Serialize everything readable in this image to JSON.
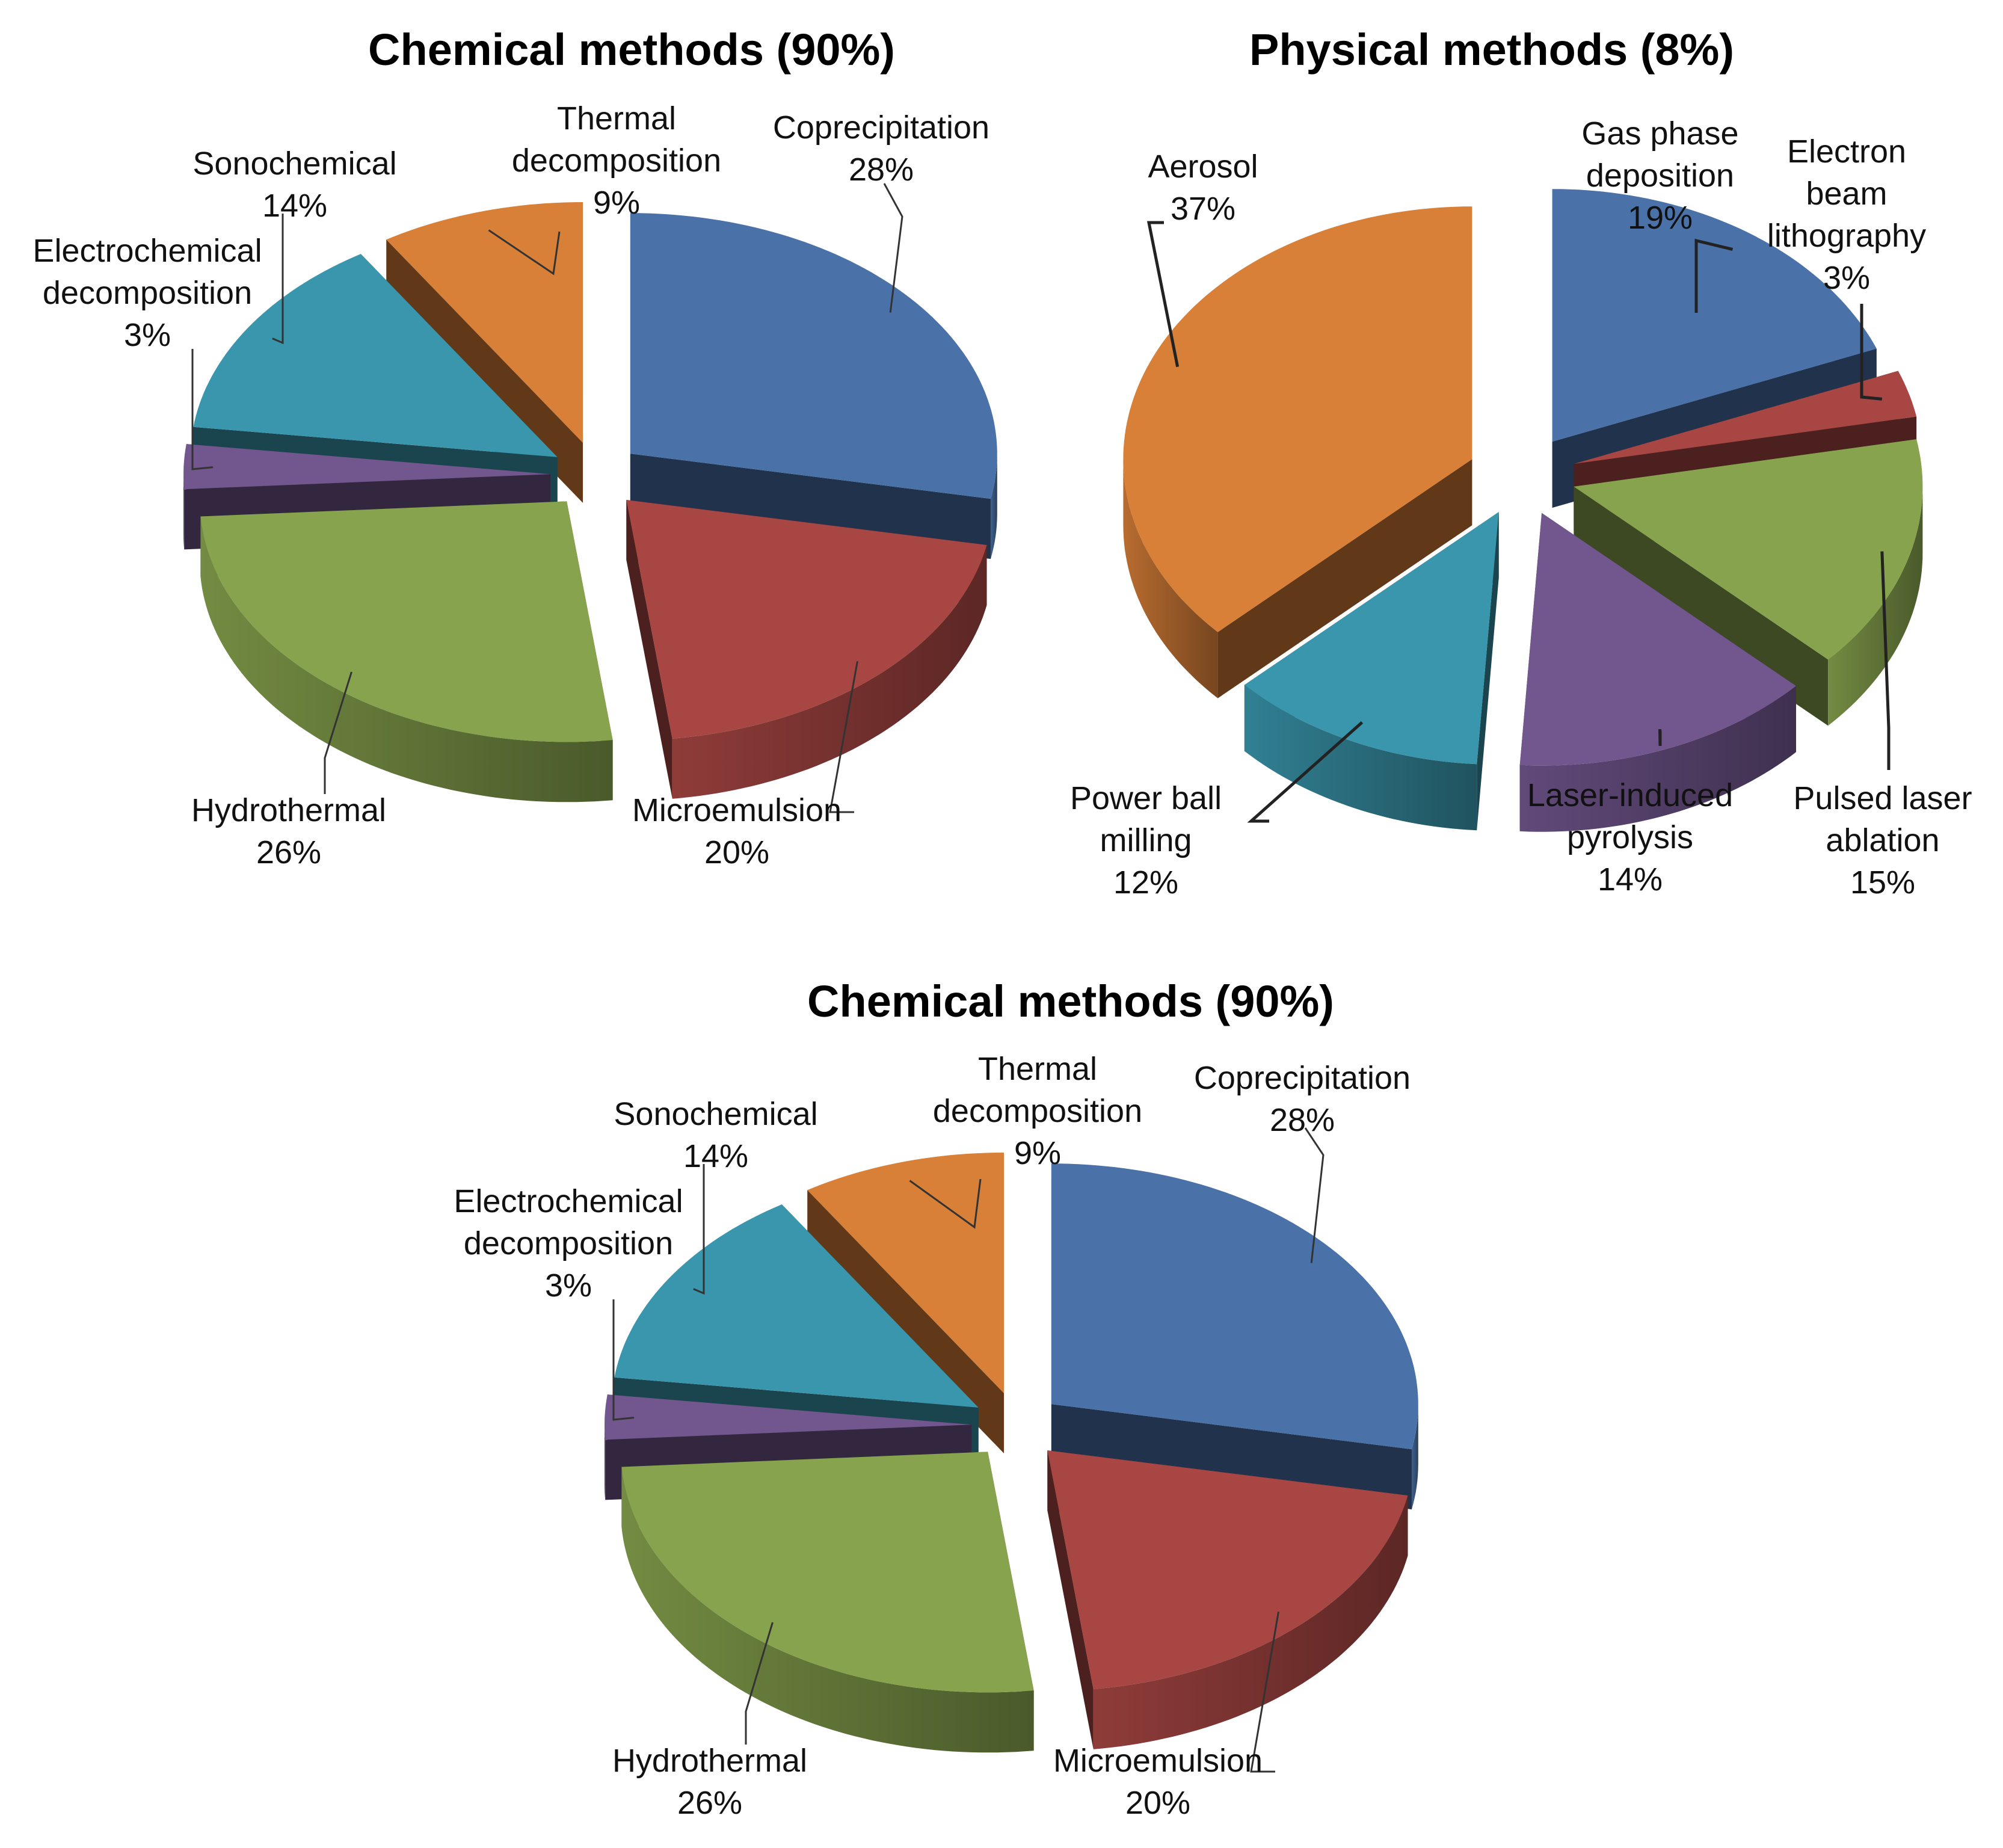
{
  "chart_data": [
    {
      "type": "pie",
      "title": "Chemical methods (90%)",
      "categories": [
        "Coprecipitation",
        "Microemulsion",
        "Hydrothermal",
        "Electrochemical decomposition",
        "Sonochemical",
        "Thermal decomposition"
      ],
      "values": [
        28,
        20,
        26,
        3,
        14,
        9
      ],
      "labels": [
        [
          "Coprecipitation",
          "28%"
        ],
        [
          "Microemulsion",
          "20%"
        ],
        [
          "Hydrothermal",
          "26%"
        ],
        [
          "Electrochemical",
          "decomposition",
          "3%"
        ],
        [
          "Sonochemical",
          "14%"
        ],
        [
          "Thermal",
          "decomposition",
          "9%"
        ]
      ],
      "colors": [
        "#4a72a8",
        "#a84643",
        "#87a34e",
        "#72578f",
        "#3a96ad",
        "#d87f38"
      ]
    },
    {
      "type": "pie",
      "title": "Physical methods (8%)",
      "categories": [
        "Gas phase deposition",
        "Electron beam lithography",
        "Pulsed laser ablation",
        "Laser-induced pyrolysis",
        "Power ball milling",
        "Aerosol"
      ],
      "values": [
        19,
        3,
        15,
        14,
        12,
        37
      ],
      "labels": [
        [
          "Gas phase",
          "deposition",
          "19%"
        ],
        [
          "Electron",
          "beam",
          "lithography",
          "3%"
        ],
        [
          "Pulsed laser",
          "ablation",
          "15%"
        ],
        [
          "Laser-induced",
          "pyrolysis",
          "14%"
        ],
        [
          "Power ball",
          "milling",
          "12%"
        ],
        [
          "Aerosol",
          "37%"
        ]
      ],
      "colors": [
        "#4a72a8",
        "#a84643",
        "#87a34e",
        "#72578f",
        "#3a96ad",
        "#d87f38"
      ]
    },
    {
      "type": "pie",
      "title": "Chemical methods (90%)",
      "categories": [
        "Coprecipitation",
        "Microemulsion",
        "Hydrothermal",
        "Electrochemical decomposition",
        "Sonochemical",
        "Thermal decomposition"
      ],
      "values": [
        28,
        20,
        26,
        3,
        14,
        9
      ],
      "labels": [
        [
          "Coprecipitation",
          "28%"
        ],
        [
          "Microemulsion",
          "20%"
        ],
        [
          "Hydrothermal",
          "26%"
        ],
        [
          "Electrochemical",
          "decomposition",
          "3%"
        ],
        [
          "Sonochemical",
          "14%"
        ],
        [
          "Thermal",
          "decomposition",
          "9%"
        ]
      ],
      "colors": [
        "#4a72a8",
        "#a84643",
        "#87a34e",
        "#72578f",
        "#3a96ad",
        "#d87f38"
      ]
    }
  ]
}
